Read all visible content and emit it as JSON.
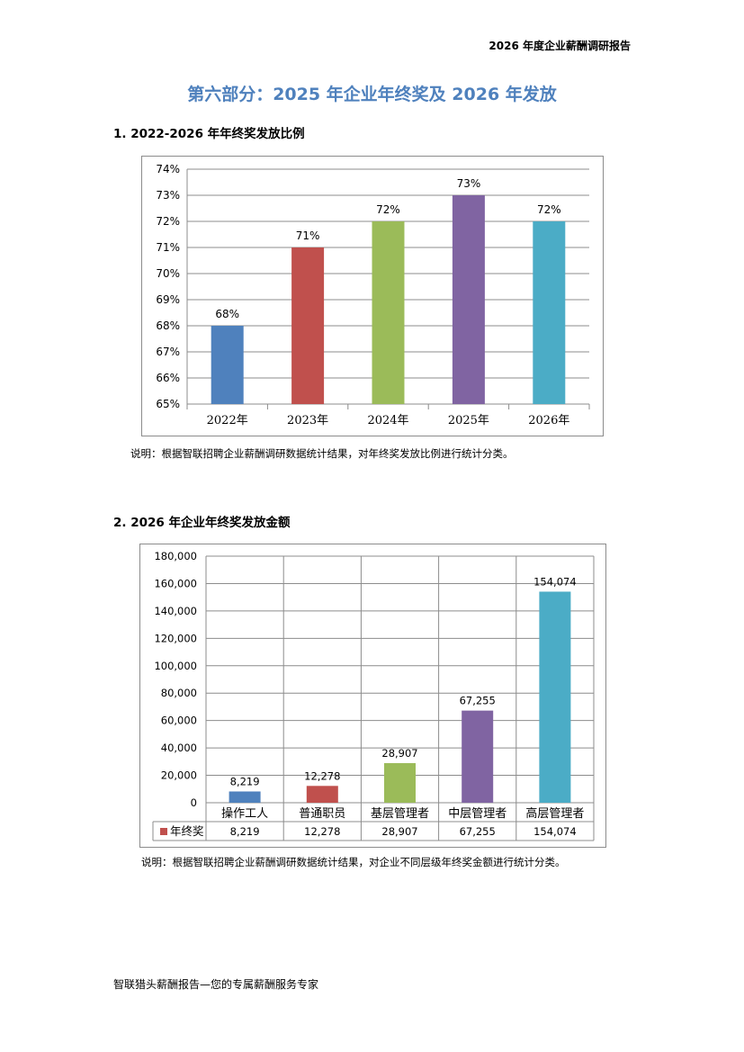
{
  "header": {
    "title": "2026 年度企业薪酬调研报告"
  },
  "part_title": "第六部分：2025 年企业年终奖及 2026 年发放",
  "section1": {
    "title": "1.   2022-2026 年年终奖发放比例",
    "note": "说明：根据智联招聘企业薪酬调研数据统计结果，对年终奖发放比例进行统计分类。"
  },
  "section2": {
    "title": "2.   2026 年企业年终奖发放金额",
    "note": "说明：根据智联招聘企业薪酬调研数据统计结果，对企业不同层级年终奖金额进行统计分类。"
  },
  "footer": "智联猎头薪酬报告—您的专属薪酬服务专家",
  "chart_data": [
    {
      "type": "bar",
      "categories": [
        "2022年",
        "2023年",
        "2024年",
        "2025年",
        "2026年"
      ],
      "values": [
        68,
        71,
        72,
        73,
        72
      ],
      "data_labels": [
        "68%",
        "71%",
        "72%",
        "73%",
        "72%"
      ],
      "colors": [
        "#4f81bd",
        "#c0504d",
        "#9bbb59",
        "#8064a2",
        "#4bacc6"
      ],
      "ylim": [
        65,
        74
      ],
      "yticks": [
        "65%",
        "66%",
        "67%",
        "68%",
        "69%",
        "70%",
        "71%",
        "72%",
        "73%",
        "74%"
      ],
      "grid": true
    },
    {
      "type": "bar",
      "categories": [
        "操作工人",
        "普通职员",
        "基层管理者",
        "中层管理者",
        "高层管理者"
      ],
      "values": [
        8219,
        12278,
        28907,
        67255,
        154074
      ],
      "data_labels": [
        "8,219",
        "12,278",
        "28,907",
        "67,255",
        "154,074"
      ],
      "colors": [
        "#4f81bd",
        "#c0504d",
        "#9bbb59",
        "#8064a2",
        "#4bacc6"
      ],
      "ylim": [
        0,
        180000
      ],
      "yticks": [
        "0",
        "20,000",
        "40,000",
        "60,000",
        "80,000",
        "100,000",
        "120,000",
        "140,000",
        "160,000",
        "180,000"
      ],
      "grid": true,
      "data_table": {
        "series_name": "年终奖",
        "series_color": "#c0504d",
        "values": [
          "8,219",
          "12,278",
          "28,907",
          "67,255",
          "154,074"
        ]
      }
    }
  ]
}
